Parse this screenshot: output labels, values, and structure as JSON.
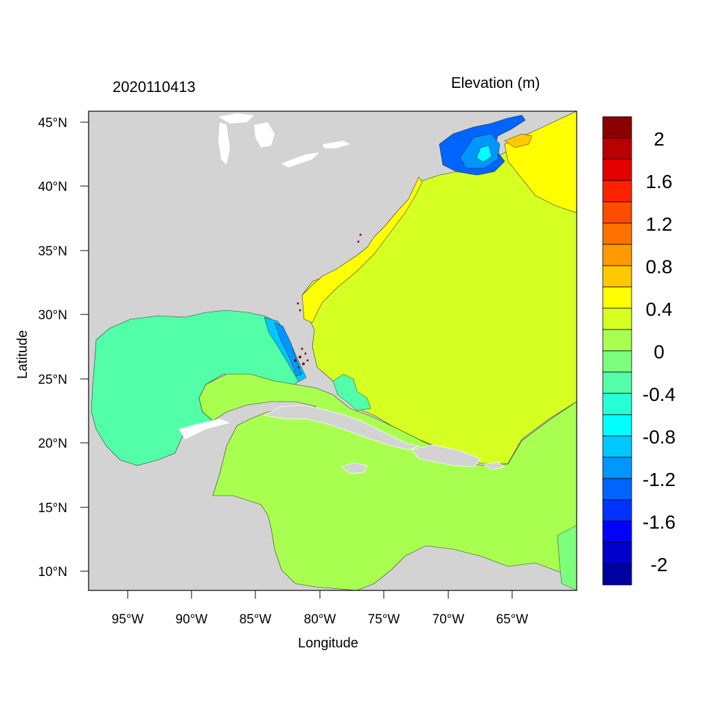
{
  "date_label": "2020110413",
  "variable_label": "Elevation (m)",
  "axes": {
    "xlabel": "Longitude",
    "ylabel": "Latitude",
    "x_ticks": [
      "95°W",
      "90°W",
      "85°W",
      "80°W",
      "75°W",
      "70°W",
      "65°W"
    ],
    "y_ticks": [
      "45°N",
      "40°N",
      "35°N",
      "30°N",
      "25°N",
      "20°N",
      "15°N",
      "10°N"
    ],
    "lon_range": [
      -98.1,
      -60.1
    ],
    "lat_range": [
      8.5,
      45.8
    ]
  },
  "colorbar": {
    "labels": [
      "2",
      "1.6",
      "1.2",
      "0.8",
      "0.4",
      "0",
      "-0.4",
      "-0.8",
      "-1.2",
      "-1.6",
      "-2"
    ],
    "colors_top_to_bottom": [
      "#8b0000",
      "#bb0000",
      "#e40000",
      "#ff2200",
      "#ff4c00",
      "#ff7200",
      "#ff9a00",
      "#ffc800",
      "#ffff00",
      "#d6ff22",
      "#a8ff50",
      "#7cff7c",
      "#52ffa8",
      "#28ffd6",
      "#00ffff",
      "#00c8ff",
      "#0096ff",
      "#0064ff",
      "#0032ff",
      "#0000ff",
      "#0000cc",
      "#0000a0"
    ]
  },
  "colors": {
    "land": "#d3d3d3",
    "gulf_of_mexico": "#52ffa8",
    "atlantic": "#d6ff22",
    "caribbean": "#a8ff50",
    "northeast_shelf": "#ffff00",
    "gulf_of_maine_low": "#0064ff"
  }
}
